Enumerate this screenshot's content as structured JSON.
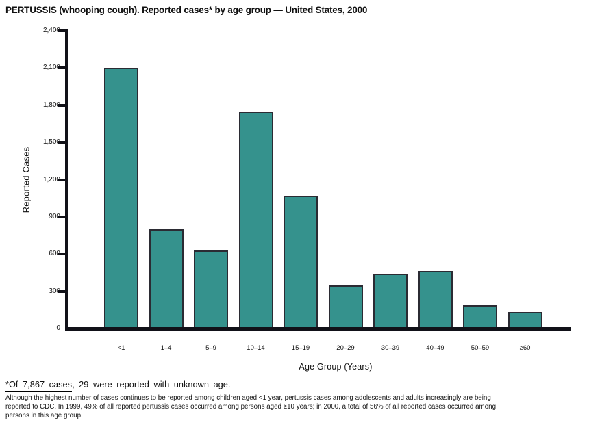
{
  "title": "PERTUSSIS (whooping cough). Reported cases* by age group — United States, 2000",
  "chart_data": {
    "type": "bar",
    "title": "PERTUSSIS (whooping cough). Reported cases* by age group — United States, 2000",
    "categories": [
      "<1",
      "1–4",
      "5–9",
      "10–14",
      "15–19",
      "20–29",
      "30–39",
      "40–49",
      "50–59",
      "≥60"
    ],
    "values": [
      2100,
      800,
      630,
      1750,
      1070,
      350,
      440,
      465,
      185,
      130
    ],
    "xlabel": "Age Group (Years)",
    "ylabel": "Reported Cases",
    "ylim": [
      0,
      2400
    ],
    "ytick_step": 300,
    "ytick_labels": [
      "0",
      "300",
      "600",
      "900",
      "1,200",
      "1,500",
      "1,800",
      "2,100",
      "2,400"
    ],
    "grid": false,
    "legend": "none",
    "bar_color": "#35928D",
    "bar_border_color": "#2B2B33",
    "axis_color": "#111118"
  },
  "footnotes": {
    "asterisk_underlined": "*Of 7,867 cases",
    "asterisk_rest": ", 29 were reported with unknown age.",
    "paragraph_lines": [
      "Although the highest number of cases continues to be reported among children aged <1 year, pertussis cases among adolescents and adults increasingly are being",
      "reported to CDC. In 1999, 49% of all reported pertussis cases occurred among persons aged ≥10 years; in 2000, a total of 56% of all reported cases occurred among",
      "persons in this age group."
    ]
  }
}
